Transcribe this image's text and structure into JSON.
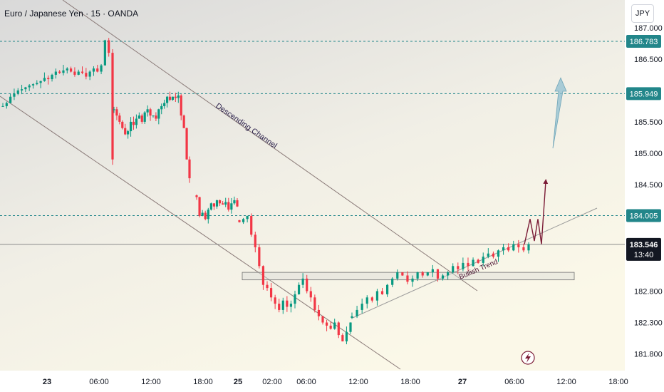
{
  "header": {
    "title": "Euro / Japanese Yen · 15 · OANDA",
    "unit_button": "JPY"
  },
  "colors": {
    "up": "#089981",
    "down": "#f23645",
    "level_tag": "#22868a",
    "current_tag": "#131722",
    "channel": "#7a6a6a",
    "trend": "#8a8a8a",
    "projection": "#7a1a35",
    "target_arrow": "#8fbfd0"
  },
  "chart_data": {
    "type": "candlestick",
    "title": "Euro / Japanese Yen · 15 · OANDA",
    "y_unit": "JPY",
    "yticks": [
      "187.000",
      "186.500",
      "185.500",
      "185.000",
      "184.500",
      "182.800",
      "182.300",
      "181.800"
    ],
    "ylim": [
      181.55,
      187.2
    ],
    "x_ticks": [
      {
        "label": "23",
        "bold": true
      },
      {
        "label": "06:00"
      },
      {
        "label": "12:00"
      },
      {
        "label": "18:00"
      },
      {
        "label": "25",
        "bold": true
      },
      {
        "label": "02:00"
      },
      {
        "label": "06:00"
      },
      {
        "label": "12:00"
      },
      {
        "label": "18:00"
      },
      {
        "label": "27",
        "bold": true
      },
      {
        "label": "06:00"
      },
      {
        "label": "12:00"
      },
      {
        "label": "18:00"
      }
    ],
    "levels": [
      {
        "label": "186.783",
        "value": 186.783
      },
      {
        "label": "185.949",
        "value": 185.949
      },
      {
        "label": "184.005",
        "value": 184.005
      }
    ],
    "current_price": {
      "label": "183.546",
      "value": 183.546,
      "countdown": "13:40"
    },
    "annotations": {
      "channel_label": "Descending Channel",
      "trend_label": "Bullish Trend"
    },
    "support_zone": {
      "low": 182.98,
      "high": 183.1
    },
    "price_path": [
      [
        185.75,
        185.8,
        185.9,
        185.95,
        186.0,
        186.02,
        186.05,
        186.08,
        186.1,
        186.12,
        186.15,
        186.2,
        186.18,
        186.25,
        186.3,
        186.28,
        186.32,
        186.35,
        186.3,
        186.25,
        186.3,
        186.28,
        186.22,
        186.3,
        186.35,
        186.3,
        186.4,
        186.8,
        186.6,
        184.9
      ],
      [
        185.7,
        185.6,
        185.5,
        185.4,
        185.3,
        185.35,
        185.5,
        185.45,
        185.55,
        185.6,
        185.5,
        185.65,
        185.7,
        185.6,
        185.6,
        185.55,
        185.7,
        185.75,
        185.8,
        185.9,
        185.85,
        185.9,
        185.88,
        185.92,
        185.6,
        185.4,
        184.9,
        184.6
      ],
      [
        184.3,
        184.0,
        184.05,
        183.95,
        184.1,
        184.2,
        184.15,
        184.25,
        184.2,
        184.18,
        184.22,
        184.1,
        184.2,
        184.25,
        184.15
      ],
      [
        183.9,
        183.95,
        184.0,
        183.7,
        183.5,
        183.2,
        182.9,
        182.85,
        182.7,
        182.6,
        182.5,
        182.65,
        182.55,
        182.6,
        182.75,
        182.9,
        183.0,
        182.8,
        182.7,
        182.5,
        182.4,
        182.3,
        182.25,
        182.2,
        182.3,
        182.1,
        182.0,
        182.15,
        182.3
      ],
      [
        182.4,
        182.5,
        182.6,
        182.7,
        182.65,
        182.8,
        182.75,
        182.9,
        183.0,
        183.1,
        183.05,
        182.95,
        183.0,
        183.1,
        183.05,
        183.1,
        183.15,
        183.0,
        183.05,
        183.1,
        183.2,
        183.15,
        183.25,
        183.2,
        183.3,
        183.25,
        183.35,
        183.4,
        183.35,
        183.45,
        183.5,
        183.45,
        183.55,
        183.5,
        183.45,
        183.55
      ]
    ],
    "projection": [
      183.546,
      183.95,
      183.6,
      183.95,
      183.55,
      184.55
    ],
    "target": 186.2
  }
}
